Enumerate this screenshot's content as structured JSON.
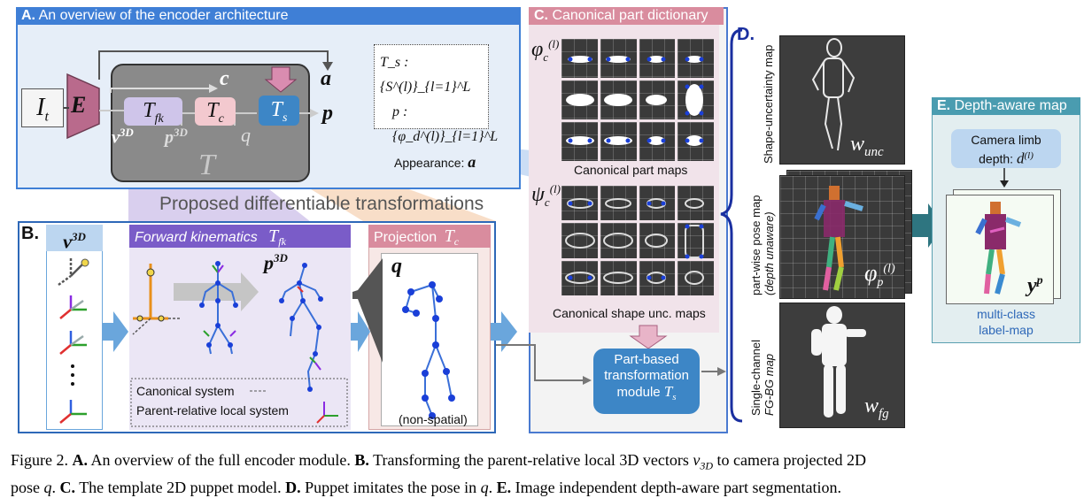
{
  "panelA": {
    "letter": "A.",
    "title": "An overview of the encoder architecture",
    "I_t": "I",
    "I_t_sub": "t",
    "E": "E",
    "T_fk": "T",
    "T_fk_sub": "fk",
    "T_c": "T",
    "T_c_sub": "c",
    "T_s": "T",
    "T_s_sub": "s",
    "c": "c",
    "a": "a",
    "p": "p",
    "v3d": "v",
    "v3d_sup": "3D",
    "p3d": "p",
    "p3d_sup": "3D",
    "q": "q",
    "T": "T",
    "def_ts": "T_s : {S^(l)}_{l=1}^L",
    "def_p": "p : {φ_d^(l)}_{l=1}^L",
    "def_app_label": "Appearance:",
    "def_app_var": "a"
  },
  "proposed": "Proposed differentiable transformations",
  "panelB": {
    "letter": "B.",
    "v3d": "v",
    "v3d_sup": "3D",
    "fk_header": "Forward kinematics",
    "fk_var": "T",
    "fk_sub": "fk",
    "proj_header": "Projection",
    "proj_var": "T",
    "proj_sub": "c",
    "p3d": "p",
    "p3d_sup": "3D",
    "q": "q",
    "legend_canonical": "Canonical system",
    "legend_parent": "Parent-relative local system",
    "non_spatial": "(non-spatial)"
  },
  "panelC": {
    "letter": "C.",
    "title": "Canonical part dictionary",
    "phi_c": "φ",
    "phi_sub": "c",
    "phi_sup": "(l)",
    "psi_c": "ψ",
    "psi_sub": "c",
    "psi_sup": "(l)",
    "maps_label": "Canonical part maps",
    "unc_label": "Canonical shape unc. maps",
    "module_line1": "Part-based",
    "module_line2": "transformation",
    "module_line3": "module",
    "module_var": "T",
    "module_sub": "s"
  },
  "panelD": {
    "letter": "D.",
    "unc_side": "Shape-uncertainty map",
    "unc_var": "w",
    "unc_sub": "unc",
    "pose_side1": "part-wise pose map",
    "pose_side2": "(depth unaware)",
    "pose_var": "φ",
    "pose_sub": "p",
    "pose_sup": "(l)",
    "fg_side1": "Single-channel",
    "fg_side2": "FG-BG map",
    "fg_var": "w",
    "fg_sub": "fg"
  },
  "panelE": {
    "letter": "E.",
    "title": "Depth-aware map",
    "cam_line1": "Camera limb",
    "cam_line2": "depth:",
    "cam_var": "d",
    "cam_sup": "(l)",
    "y_var": "y",
    "y_sup": "p",
    "label1": "multi-class",
    "label2": "label-map"
  },
  "caption": {
    "fig": "Figure 2.",
    "a_head": "A.",
    "a_text": "An overview of the full encoder module.",
    "b_head": "B.",
    "b_text1": "Transforming the parent-relative local 3D vectors",
    "b_var": "v",
    "b_sub": "3D",
    "b_text2": "to camera projected 2D",
    "line2_a": "pose",
    "q1": "q",
    "c_head": "C.",
    "c_text": "The template 2D puppet model.",
    "d_head": "D.",
    "d_text": "Puppet imitates the pose in",
    "q2": "q",
    "e_head": "E.",
    "e_text": "Image independent depth-aware part segmentation."
  },
  "colors": {
    "blue_header": "#3f7fd6",
    "purple_header": "#7a5cc8",
    "pink_header": "#d98c9e",
    "teal_arrow": "#2e7580",
    "light_blue_arrow": "#5aa0d8",
    "module_blue": "#3d86c6"
  }
}
